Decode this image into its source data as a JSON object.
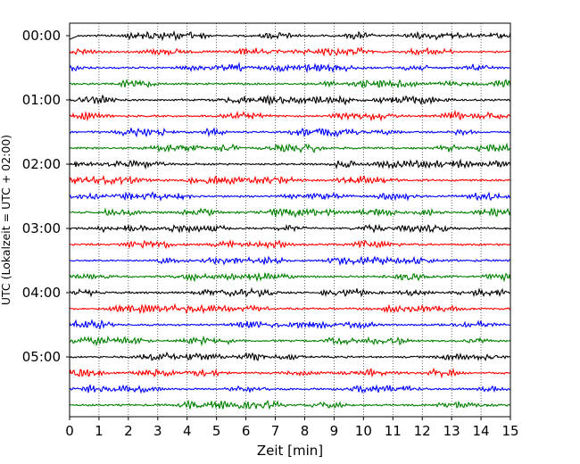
{
  "chart_data": {
    "type": "line",
    "title": "",
    "xlabel": "Zeit  [min]",
    "ylabel": "UTC (Lokalzeit = UTC + 02:00)",
    "xlim": [
      0,
      15
    ],
    "x_ticks": [
      "0",
      "1",
      "2",
      "3",
      "4",
      "5",
      "6",
      "7",
      "8",
      "9",
      "10",
      "11",
      "12",
      "13",
      "14",
      "15"
    ],
    "y_ticks": [
      "00:00",
      "01:00",
      "02:00",
      "03:00",
      "04:00",
      "05:00"
    ],
    "grid": "vertical dotted at each minute",
    "trace_count": 24,
    "trace_interval_min": 15,
    "trace_colors": [
      "#000000",
      "#ff0000",
      "#0000ff",
      "#008000"
    ],
    "trace_amplitude_relative": 0.35
  }
}
